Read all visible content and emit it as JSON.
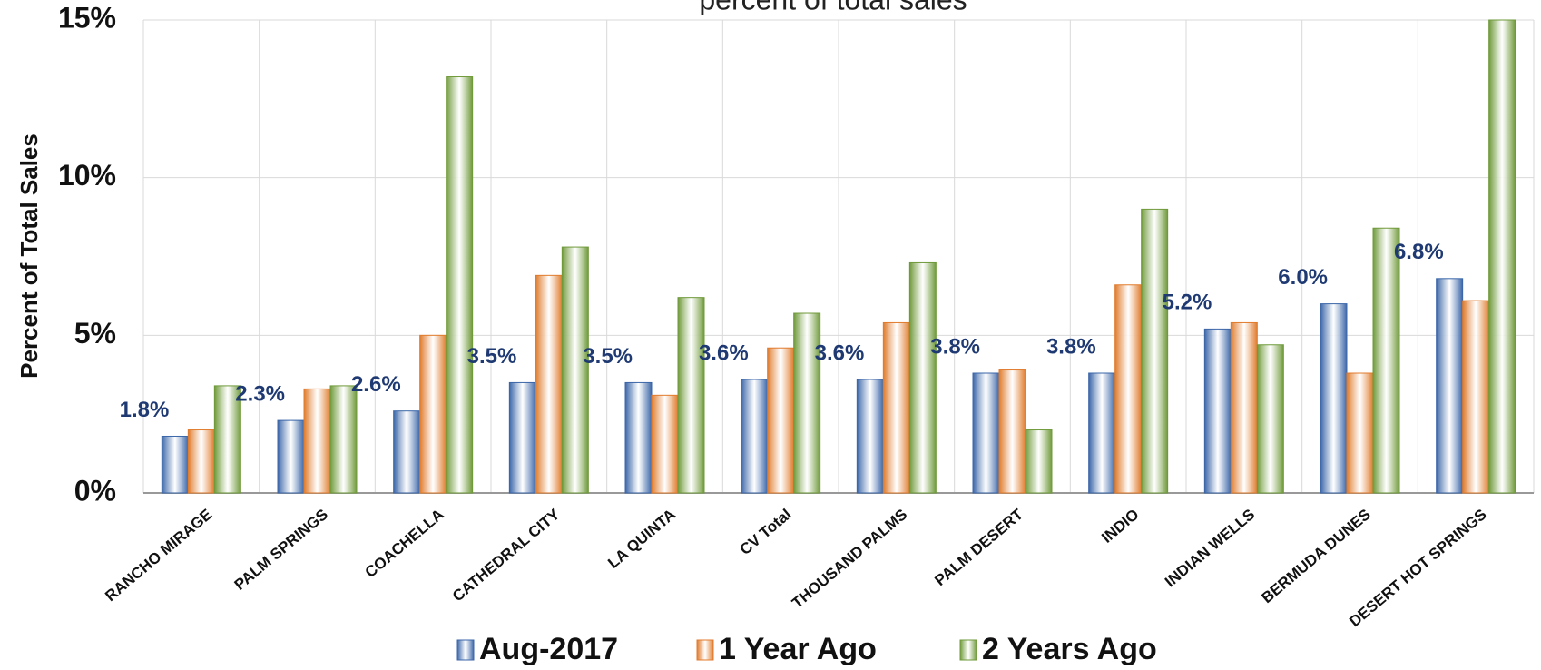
{
  "chart_data": {
    "type": "bar",
    "title": "percent of total sales",
    "y_label": "Percent of Total Sales",
    "categories": [
      "RANCHO MIRAGE",
      "PALM SPRINGS",
      "COACHELLA",
      "CATHEDRAL CITY",
      "LA QUINTA",
      "CV Total",
      "THOUSAND PALMS",
      "PALM DESERT",
      "INDIO",
      "INDIAN WELLS",
      "BERMUDA DUNES",
      "DESERT HOT SPRINGS"
    ],
    "series": [
      {
        "name": "Aug-2017",
        "color": "#3b66a8",
        "values": [
          1.8,
          2.3,
          2.6,
          3.5,
          3.5,
          3.6,
          3.6,
          3.8,
          3.8,
          5.2,
          6.0,
          6.8
        ],
        "value_labels": [
          "1.8%",
          "2.3%",
          "2.6%",
          "3.5%",
          "3.5%",
          "3.6%",
          "3.6%",
          "3.8%",
          "3.8%",
          "5.2%",
          "6.0%",
          "6.8%"
        ]
      },
      {
        "name": "1 Year Ago",
        "color": "#e07b2c",
        "values": [
          2.0,
          3.3,
          5.0,
          6.9,
          3.1,
          4.6,
          5.4,
          3.9,
          6.6,
          5.4,
          3.8,
          6.1
        ]
      },
      {
        "name": "2 Years Ago",
        "color": "#6f9a3a",
        "values": [
          3.4,
          3.4,
          13.2,
          7.8,
          6.2,
          5.7,
          7.3,
          2.0,
          9.0,
          4.7,
          8.4,
          15
        ]
      }
    ],
    "ylim": [
      0,
      15
    ],
    "yticks": [
      {
        "value": 0,
        "label": "0%"
      },
      {
        "value": 5,
        "label": "5%"
      },
      {
        "value": 10,
        "label": "10%"
      },
      {
        "value": 15,
        "label": "15%"
      }
    ],
    "grid": true,
    "legend": "bottom"
  }
}
